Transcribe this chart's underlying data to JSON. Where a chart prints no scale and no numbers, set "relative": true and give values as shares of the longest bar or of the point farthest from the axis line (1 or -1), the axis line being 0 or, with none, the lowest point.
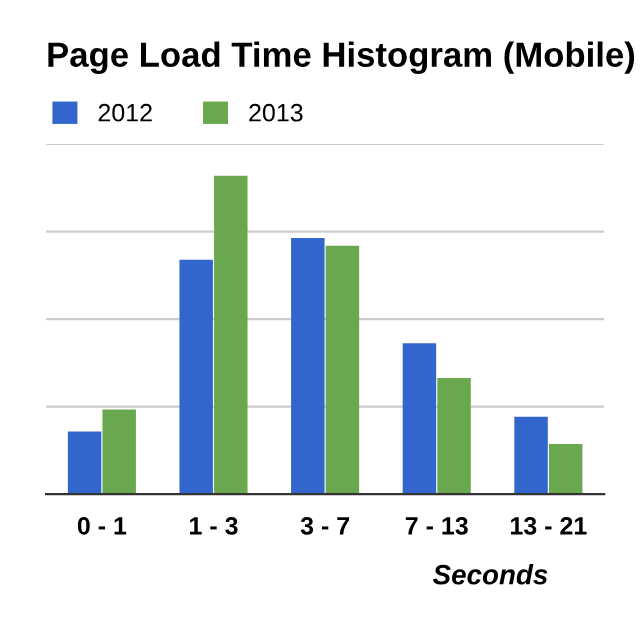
{
  "chart_data": {
    "type": "bar",
    "title": "Page Load Time Histogram (Mobile)",
    "xlabel": "Seconds",
    "categories": [
      "0 - 1",
      "1 - 3",
      "3 - 7",
      "7 - 13",
      "13 - 21"
    ],
    "relative": true,
    "grid": "y",
    "legend": "top left",
    "series": [
      {
        "name": "2012",
        "color": "#3366cc",
        "values": [
          0.197,
          0.736,
          0.805,
          0.474,
          0.243
        ]
      },
      {
        "name": "2013",
        "color": "#6aa84f",
        "values": [
          0.266,
          1,
          0.78,
          0.365,
          0.157
        ]
      }
    ]
  }
}
